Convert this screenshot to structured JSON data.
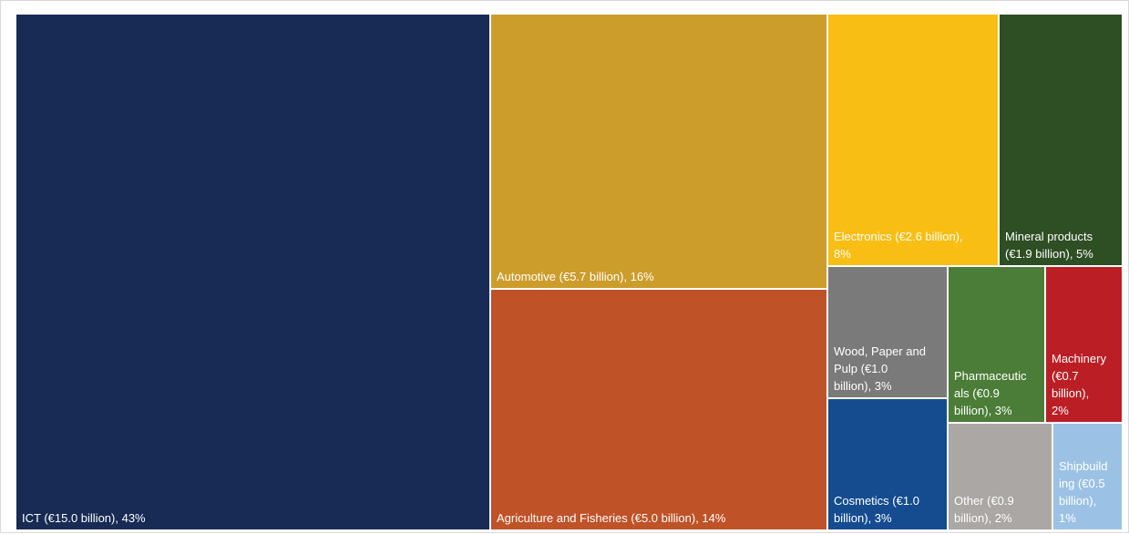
{
  "chart_data": {
    "type": "treemap",
    "title": "",
    "unit": "€ billion",
    "items": [
      {
        "name": "ICT",
        "value": 15.0,
        "share": 43,
        "label_lines": [
          "ICT (€15.0 billion), 43%"
        ],
        "color": "#172b55"
      },
      {
        "name": "Automotive",
        "value": 5.7,
        "share": 16,
        "label_lines": [
          "Automotive (€5.7 billion), 16%"
        ],
        "color": "#cc9d2b"
      },
      {
        "name": "Agriculture and Fisheries",
        "value": 5.0,
        "share": 14,
        "label_lines": [
          "Agriculture and Fisheries (€5.0 billion), 14%"
        ],
        "color": "#c05228"
      },
      {
        "name": "Electronics",
        "value": 2.6,
        "share": 8,
        "label_lines": [
          "Electronics (€2.6 billion),",
          "8%"
        ],
        "color": "#f9be14"
      },
      {
        "name": "Mineral products",
        "value": 1.9,
        "share": 5,
        "label_lines": [
          "Mineral products",
          "(€1.9 billion), 5%"
        ],
        "color": "#2e4e24"
      },
      {
        "name": "Wood, Paper and Pulp",
        "value": 1.0,
        "share": 3,
        "label_lines": [
          "Wood, Paper and",
          "Pulp (€1.0",
          "billion), 3%"
        ],
        "color": "#7a7a7a"
      },
      {
        "name": "Cosmetics",
        "value": 1.0,
        "share": 3,
        "label_lines": [
          "Cosmetics (€1.0",
          "billion), 3%"
        ],
        "color": "#154c90"
      },
      {
        "name": "Pharmaceuticals",
        "value": 0.9,
        "share": 3,
        "label_lines": [
          "Pharmaceutic",
          "als (€0.9",
          "billion), 3%"
        ],
        "color": "#4c7d38"
      },
      {
        "name": "Machinery",
        "value": 0.7,
        "share": 2,
        "label_lines": [
          "Machinery",
          "(€0.7",
          "billion),",
          "2%"
        ],
        "color": "#bb1f25"
      },
      {
        "name": "Other",
        "value": 0.9,
        "share": 2,
        "label_lines": [
          "Other (€0.9",
          "billion), 2%"
        ],
        "color": "#aaa7a4"
      },
      {
        "name": "Shipbuilding",
        "value": 0.5,
        "share": 1,
        "label_lines": [
          "Shipbuild",
          "ing (€0.5",
          "billion),",
          "1%"
        ],
        "color": "#9bc2e4"
      }
    ]
  }
}
